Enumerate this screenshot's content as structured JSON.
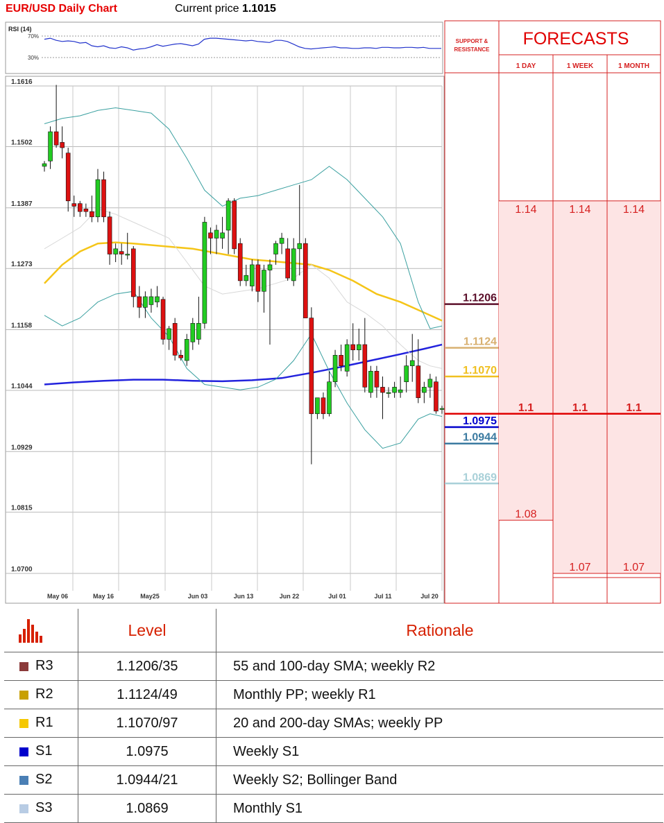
{
  "header": {
    "title": "EUR/USD Daily Chart",
    "price_label": "Current price",
    "price_value": "1.1015"
  },
  "rsi": {
    "label": "RSI (14)",
    "upper_label": "70%",
    "lower_label": "30%",
    "upper": 70,
    "lower": 30
  },
  "chart_data": {
    "type": "candlestick",
    "y_ticks": [
      "1.1616",
      "1.1502",
      "1.1387",
      "1.1273",
      "1.1158",
      "1.1044",
      "1.0929",
      "1.0815",
      "1.0700"
    ],
    "ylim": [
      1.07,
      1.1616
    ],
    "x_ticks": [
      "May 06",
      "May 16",
      "May25",
      "Jun 03",
      "Jun 13",
      "Jun 22",
      "Jul 01",
      "Jul 11",
      "Jul 20"
    ],
    "candles": [
      [
        1.1465,
        1.1475,
        1.1455,
        1.147
      ],
      [
        1.1475,
        1.154,
        1.146,
        1.153
      ],
      [
        1.153,
        1.1618,
        1.15,
        1.1505
      ],
      [
        1.151,
        1.154,
        1.148,
        1.15
      ],
      [
        1.149,
        1.15,
        1.138,
        1.14
      ],
      [
        1.1395,
        1.141,
        1.137,
        1.139
      ],
      [
        1.1395,
        1.14,
        1.137,
        1.138
      ],
      [
        1.1385,
        1.1395,
        1.137,
        1.138
      ],
      [
        1.138,
        1.141,
        1.136,
        1.137
      ],
      [
        1.137,
        1.146,
        1.136,
        1.144
      ],
      [
        1.144,
        1.1455,
        1.136,
        1.137
      ],
      [
        1.137,
        1.138,
        1.128,
        1.13
      ],
      [
        1.13,
        1.132,
        1.1285,
        1.131
      ],
      [
        1.1305,
        1.132,
        1.128,
        1.13
      ],
      [
        1.13,
        1.134,
        1.129,
        1.13
      ],
      [
        1.131,
        1.1315,
        1.12,
        1.122
      ],
      [
        1.122,
        1.124,
        1.118,
        1.12
      ],
      [
        1.12,
        1.123,
        1.118,
        1.122
      ],
      [
        1.1205,
        1.1235,
        1.119,
        1.122
      ],
      [
        1.121,
        1.124,
        1.12,
        1.122
      ],
      [
        1.1215,
        1.122,
        1.113,
        1.114
      ],
      [
        1.114,
        1.1165,
        1.112,
        1.116
      ],
      [
        1.117,
        1.118,
        1.11,
        1.111
      ],
      [
        1.111,
        1.112,
        1.11,
        1.1105
      ],
      [
        1.11,
        1.115,
        1.109,
        1.114
      ],
      [
        1.1135,
        1.118,
        1.112,
        1.117
      ],
      [
        1.114,
        1.122,
        1.113,
        1.117
      ],
      [
        1.117,
        1.137,
        1.116,
        1.136
      ],
      [
        1.134,
        1.135,
        1.13,
        1.133
      ],
      [
        1.133,
        1.1355,
        1.13,
        1.1345
      ],
      [
        1.133,
        1.137,
        1.131,
        1.134
      ],
      [
        1.1345,
        1.1405,
        1.13,
        1.14
      ],
      [
        1.14,
        1.1405,
        1.13,
        1.131
      ],
      [
        1.132,
        1.133,
        1.124,
        1.125
      ],
      [
        1.125,
        1.128,
        1.124,
        1.126
      ],
      [
        1.124,
        1.129,
        1.123,
        1.128
      ],
      [
        1.128,
        1.129,
        1.121,
        1.123
      ],
      [
        1.123,
        1.128,
        1.119,
        1.127
      ],
      [
        1.127,
        1.129,
        1.113,
        1.128
      ],
      [
        1.13,
        1.1325,
        1.128,
        1.132
      ],
      [
        1.132,
        1.134,
        1.13,
        1.133
      ],
      [
        1.131,
        1.133,
        1.125,
        1.1255
      ],
      [
        1.125,
        1.133,
        1.124,
        1.131
      ],
      [
        1.131,
        1.143,
        1.126,
        1.132
      ],
      [
        1.132,
        1.133,
        1.118,
        1.118
      ],
      [
        1.118,
        1.12,
        1.0905,
        1.1
      ],
      [
        1.1,
        1.103,
        1.099,
        1.103
      ],
      [
        1.103,
        1.104,
        1.099,
        1.1
      ],
      [
        1.1,
        1.108,
        1.0995,
        1.106
      ],
      [
        1.106,
        1.112,
        1.105,
        1.111
      ],
      [
        1.111,
        1.113,
        1.108,
        1.109
      ],
      [
        1.108,
        1.114,
        1.107,
        1.113
      ],
      [
        1.113,
        1.117,
        1.11,
        1.112
      ],
      [
        1.112,
        1.116,
        1.11,
        1.113
      ],
      [
        1.113,
        1.118,
        1.104,
        1.105
      ],
      [
        1.104,
        1.109,
        1.103,
        1.108
      ],
      [
        1.108,
        1.109,
        1.103,
        1.105
      ],
      [
        1.105,
        1.107,
        1.099,
        1.104
      ],
      [
        1.104,
        1.105,
        1.103,
        1.104
      ],
      [
        1.104,
        1.106,
        1.103,
        1.105
      ],
      [
        1.104,
        1.107,
        1.103,
        1.1045
      ],
      [
        1.106,
        1.111,
        1.104,
        1.109
      ],
      [
        1.109,
        1.115,
        1.106,
        1.11
      ],
      [
        1.109,
        1.114,
        1.102,
        1.103
      ],
      [
        1.104,
        1.106,
        1.102,
        1.105
      ],
      [
        1.105,
        1.1075,
        1.103,
        1.1065
      ],
      [
        1.106,
        1.107,
        1.1,
        1.1005
      ],
      [
        1.101,
        1.1015,
        1.1,
        1.101
      ]
    ],
    "series": [
      {
        "type": "line",
        "color": "#f5c518",
        "points": [
          [
            0,
            1.1245
          ],
          [
            3,
            1.128
          ],
          [
            6,
            1.1305
          ],
          [
            9,
            1.132
          ],
          [
            12,
            1.1322
          ],
          [
            15,
            1.132
          ],
          [
            20,
            1.1315
          ],
          [
            25,
            1.131
          ],
          [
            30,
            1.13
          ],
          [
            35,
            1.129
          ],
          [
            40,
            1.1285
          ],
          [
            45,
            1.128
          ],
          [
            48,
            1.127
          ],
          [
            52,
            1.125
          ],
          [
            56,
            1.1225
          ],
          [
            60,
            1.121
          ],
          [
            64,
            1.119
          ],
          [
            67,
            1.1175
          ]
        ]
      },
      {
        "type": "line",
        "color": "#2222dd",
        "points": [
          [
            0,
            1.1055
          ],
          [
            5,
            1.1059
          ],
          [
            10,
            1.1062
          ],
          [
            15,
            1.1064
          ],
          [
            20,
            1.1064
          ],
          [
            25,
            1.1062
          ],
          [
            30,
            1.1061
          ],
          [
            35,
            1.1063
          ],
          [
            40,
            1.1067
          ],
          [
            45,
            1.1077
          ],
          [
            50,
            1.1088
          ],
          [
            55,
            1.11
          ],
          [
            60,
            1.1112
          ],
          [
            64,
            1.1122
          ],
          [
            67,
            1.113
          ]
        ]
      },
      {
        "type": "line",
        "color": "#3aa0a0",
        "points": [
          [
            0,
            1.1545
          ],
          [
            3,
            1.1555
          ],
          [
            6,
            1.156
          ],
          [
            9,
            1.157
          ],
          [
            12,
            1.1575
          ],
          [
            15,
            1.157
          ],
          [
            18,
            1.1565
          ],
          [
            21,
            1.1535
          ],
          [
            24,
            1.148
          ],
          [
            27,
            1.142
          ],
          [
            30,
            1.139
          ],
          [
            33,
            1.1405
          ],
          [
            36,
            1.141
          ],
          [
            39,
            1.142
          ],
          [
            42,
            1.143
          ],
          [
            45,
            1.144
          ],
          [
            48,
            1.1465
          ],
          [
            51,
            1.144
          ],
          [
            54,
            1.1405
          ],
          [
            57,
            1.137
          ],
          [
            60,
            1.132
          ],
          [
            63,
            1.121
          ],
          [
            65,
            1.116
          ],
          [
            67,
            1.1165
          ]
        ]
      },
      {
        "type": "line",
        "color": "#3aa0a0",
        "points": [
          [
            0,
            1.1185
          ],
          [
            3,
            1.1165
          ],
          [
            6,
            1.118
          ],
          [
            9,
            1.121
          ],
          [
            12,
            1.1225
          ],
          [
            15,
            1.123
          ],
          [
            18,
            1.118
          ],
          [
            21,
            1.1145
          ],
          [
            24,
            1.1085
          ],
          [
            27,
            1.1055
          ],
          [
            30,
            1.105
          ],
          [
            33,
            1.1045
          ],
          [
            36,
            1.105
          ],
          [
            39,
            1.1065
          ],
          [
            42,
            1.11
          ],
          [
            45,
            1.115
          ],
          [
            48,
            1.108
          ],
          [
            51,
            1.102
          ],
          [
            54,
            1.097
          ],
          [
            57,
            1.0935
          ],
          [
            60,
            1.0945
          ],
          [
            63,
            1.099
          ],
          [
            65,
            1.1
          ],
          [
            67,
            1.0995
          ]
        ]
      },
      {
        "type": "line",
        "color": "#d8d8d8",
        "points": [
          [
            0,
            1.131
          ],
          [
            3,
            1.133
          ],
          [
            6,
            1.135
          ],
          [
            9,
            1.1385
          ],
          [
            12,
            1.1375
          ],
          [
            15,
            1.136
          ],
          [
            18,
            1.1345
          ],
          [
            21,
            1.133
          ],
          [
            24,
            1.1285
          ],
          [
            27,
            1.124
          ],
          [
            30,
            1.1225
          ],
          [
            33,
            1.123
          ],
          [
            36,
            1.1235
          ],
          [
            39,
            1.1245
          ],
          [
            42,
            1.1255
          ],
          [
            45,
            1.128
          ],
          [
            48,
            1.1255
          ],
          [
            51,
            1.121
          ],
          [
            54,
            1.119
          ],
          [
            57,
            1.1165
          ],
          [
            60,
            1.113
          ],
          [
            63,
            1.11
          ],
          [
            65,
            1.109
          ],
          [
            67,
            1.1085
          ]
        ]
      }
    ],
    "rsi_values": [
      64,
      66,
      62,
      60,
      61,
      60,
      57,
      58,
      52,
      50,
      52,
      48,
      47,
      50,
      48,
      44,
      46,
      47,
      50,
      54,
      51,
      53,
      55,
      56,
      54,
      52,
      55,
      64,
      66,
      66,
      65,
      64,
      63,
      62,
      61,
      62,
      60,
      59,
      58,
      62,
      62,
      60,
      55,
      50,
      47,
      46,
      47,
      48,
      49,
      50,
      48,
      48,
      47,
      47,
      48,
      48,
      47,
      49,
      49,
      48,
      48,
      49,
      49,
      48,
      49,
      47,
      47,
      47
    ]
  },
  "sr": {
    "header": [
      "SUPPORT &",
      "RESISTANCE"
    ],
    "levels": [
      {
        "value": "1.1206",
        "price": 1.1206,
        "color": "#5b0f2a"
      },
      {
        "value": "1.1124",
        "price": 1.1124,
        "color": "#d8b070"
      },
      {
        "value": "1.1070",
        "price": 1.107,
        "color": "#f0c020"
      },
      {
        "value": "1.0975",
        "price": 1.0975,
        "color": "#0000cc"
      },
      {
        "value": "1.0944",
        "price": 1.0944,
        "color": "#3a7aa0"
      },
      {
        "value": "1.0869",
        "price": 1.0869,
        "color": "#a8d0d8"
      }
    ]
  },
  "forecasts": {
    "title": "FORECASTS",
    "columns": [
      {
        "label": "1 DAY",
        "upper": "1.14",
        "mid": "1.1",
        "lower": "1.08",
        "upper_price": 1.14,
        "lower_price": 1.08
      },
      {
        "label": "1 WEEK",
        "upper": "1.14",
        "mid": "1.1",
        "lower": "1.07",
        "upper_price": 1.14,
        "lower_price": 1.07
      },
      {
        "label": "1 MONTH",
        "upper": "1.14",
        "mid": "1.1",
        "lower": "1.07",
        "upper_price": 1.14,
        "lower_price": 1.07
      }
    ],
    "mid_price": 1.1
  },
  "levels_table": {
    "headers": [
      "Level",
      "Rationale"
    ],
    "rows": [
      {
        "name": "R3",
        "level": "1.1206/35",
        "rationale": "55 and 100-day SMA; weekly R2",
        "color": "#8b3a3a"
      },
      {
        "name": "R2",
        "level": "1.1124/49",
        "rationale": "Monthly PP; weekly R1",
        "color": "#c8a000"
      },
      {
        "name": "R1",
        "level": "1.1070/97",
        "rationale": "20 and 200-day SMAs; weekly PP",
        "color": "#f5c800"
      },
      {
        "name": "S1",
        "level": "1.0975",
        "rationale": "Weekly S1",
        "color": "#0000cc"
      },
      {
        "name": "S2",
        "level": "1.0944/21",
        "rationale": "Weekly S2; Bollinger Band",
        "color": "#4a7fb5"
      },
      {
        "name": "S3",
        "level": "1.0869",
        "rationale": "Monthly S1",
        "color": "#b8cce4"
      }
    ]
  }
}
